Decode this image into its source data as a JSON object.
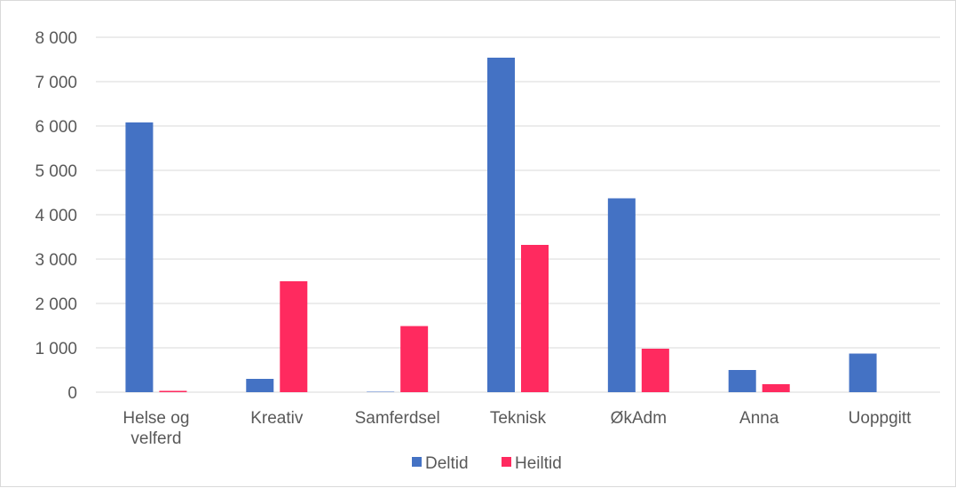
{
  "chart_data": {
    "type": "bar",
    "categories": [
      [
        "Helse og",
        "velferd"
      ],
      [
        "Kreativ"
      ],
      [
        "Samferdsel"
      ],
      [
        "Teknisk"
      ],
      [
        "ØkAdm"
      ],
      [
        "Anna"
      ],
      [
        "Uoppgitt"
      ]
    ],
    "series": [
      {
        "name": "Deltid",
        "color": "#4472C4",
        "values": [
          6080,
          300,
          10,
          7540,
          4370,
          500,
          870
        ]
      },
      {
        "name": "Heiltid",
        "color": "#FF2A5F",
        "values": [
          30,
          2500,
          1490,
          3320,
          980,
          180,
          0
        ]
      }
    ],
    "ylim": [
      0,
      8000
    ],
    "yticks": [
      0,
      1000,
      2000,
      3000,
      4000,
      5000,
      6000,
      7000,
      8000
    ],
    "ytick_labels": [
      "0",
      "1 000",
      "2 000",
      "3 000",
      "4 000",
      "5 000",
      "6 000",
      "7 000",
      "8 000"
    ],
    "grid": true,
    "gridline_color": "#d9d9d9",
    "legend_position": "bottom"
  }
}
